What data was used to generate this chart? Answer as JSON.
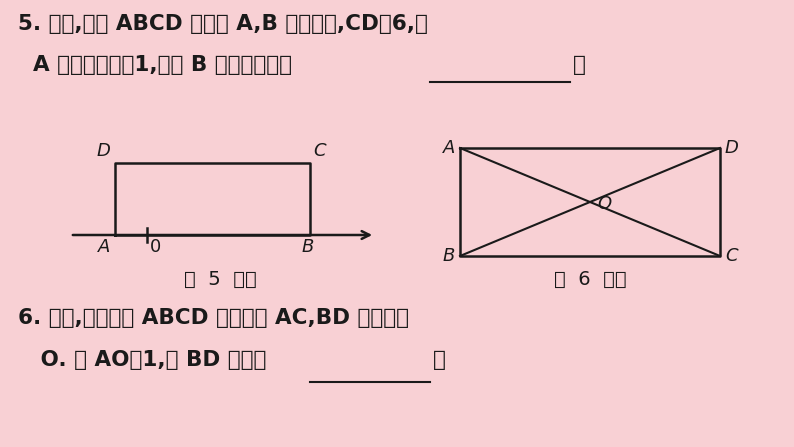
{
  "bg_color": "#f8d0d4",
  "text_color": "#1a1a1a",
  "line_color": "#1a1a1a",
  "title_line1": "5. 如图,矩形 ABCD 的顶点 A,B 在数轴上,CD＝6,点",
  "title_line2": "  A 对应的数为－1,则点 B 所对应的数为",
  "fig5_label": "第  5  题图",
  "fig6_label": "第  6  题图",
  "bottom_line1": "6. 如图,已知矩形 ABCD 的对角线 AC,BD 相交于点",
  "bottom_line2": "   O. 若 AO＝1,则 BD 的长为"
}
